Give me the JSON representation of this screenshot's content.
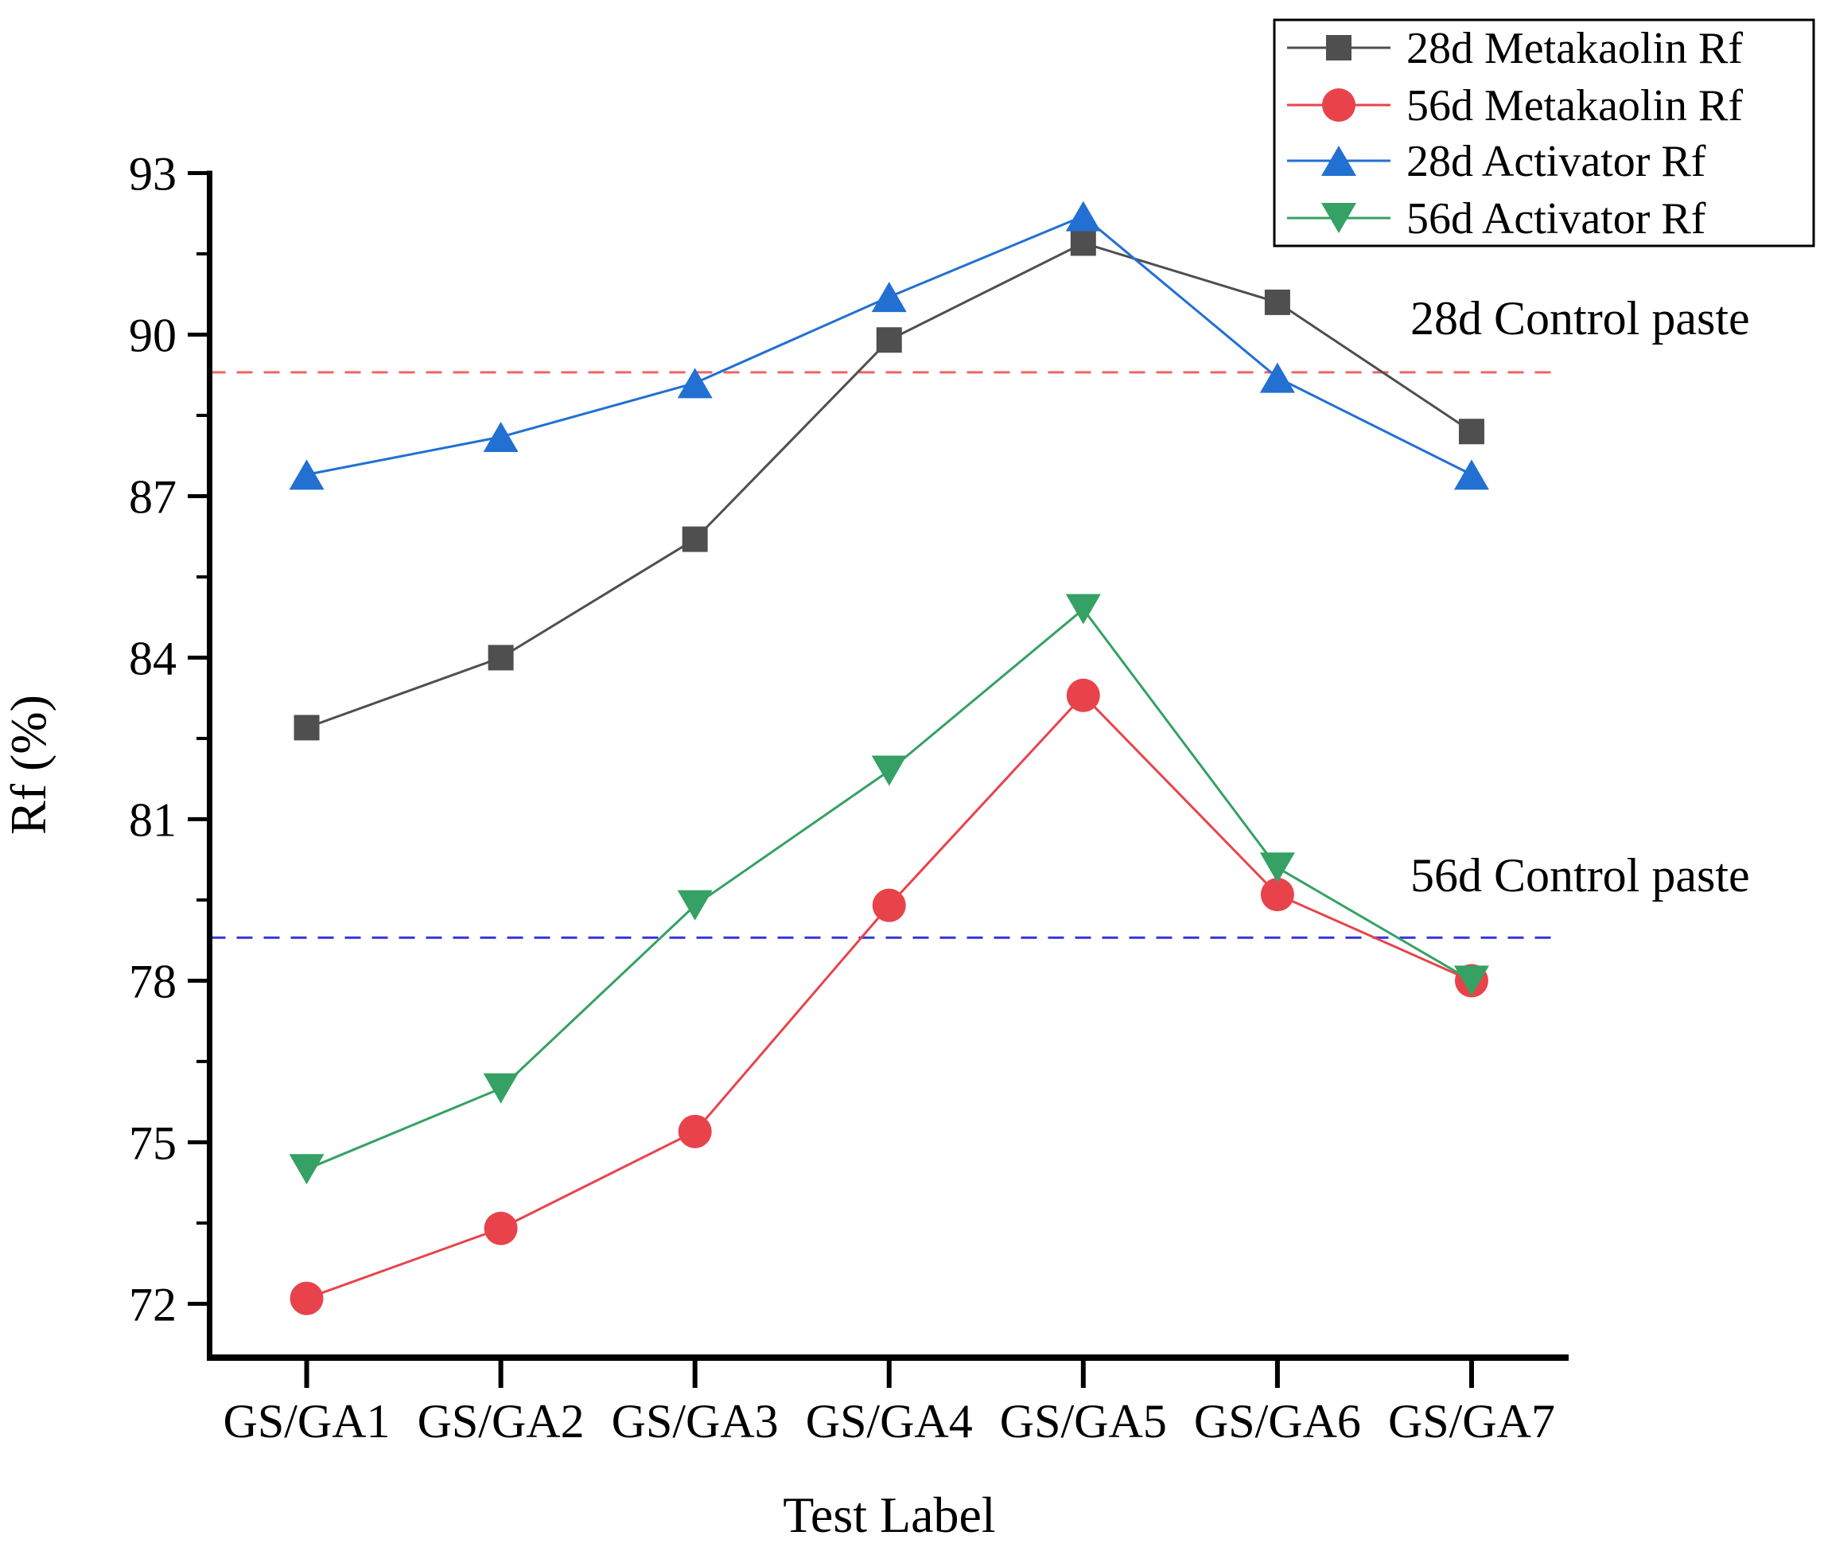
{
  "chart_data": {
    "type": "line",
    "title": "",
    "xlabel": "Test Label",
    "ylabel": "Rf (%)",
    "categories": [
      "GS/GA1",
      "GS/GA2",
      "GS/GA3",
      "GS/GA4",
      "GS/GA5",
      "GS/GA6",
      "GS/GA7"
    ],
    "ylim": [
      71,
      93
    ],
    "yticks": [
      72,
      75,
      78,
      81,
      84,
      87,
      90,
      93
    ],
    "minor_ticks": true,
    "grid": false,
    "legend_position": "top-right",
    "series": [
      {
        "name": "28d Metakaolin Rf",
        "marker": "square",
        "color": "#4f4f4f",
        "values": [
          82.7,
          84.0,
          86.2,
          89.9,
          91.7,
          90.6,
          88.2
        ]
      },
      {
        "name": "56d Metakaolin Rf",
        "marker": "circle",
        "color": "#e8434b",
        "values": [
          72.1,
          73.4,
          75.2,
          79.4,
          83.3,
          79.6,
          78.0
        ]
      },
      {
        "name": "28d Activator Rf",
        "marker": "triangle-up",
        "color": "#2270d2",
        "values": [
          87.4,
          88.1,
          89.1,
          90.7,
          92.2,
          89.2,
          87.4
        ]
      },
      {
        "name": "56d Activator Rf",
        "marker": "triangle-down",
        "color": "#35a164",
        "values": [
          74.5,
          76.0,
          79.4,
          81.9,
          84.9,
          80.1,
          78.0
        ]
      }
    ],
    "reference_lines": [
      {
        "label": "28d Control paste",
        "value": 89.3,
        "color": "#ee6666",
        "style": "dashed"
      },
      {
        "label": "56d Control paste",
        "value": 78.8,
        "color": "#3434dd",
        "style": "dashed"
      }
    ]
  }
}
